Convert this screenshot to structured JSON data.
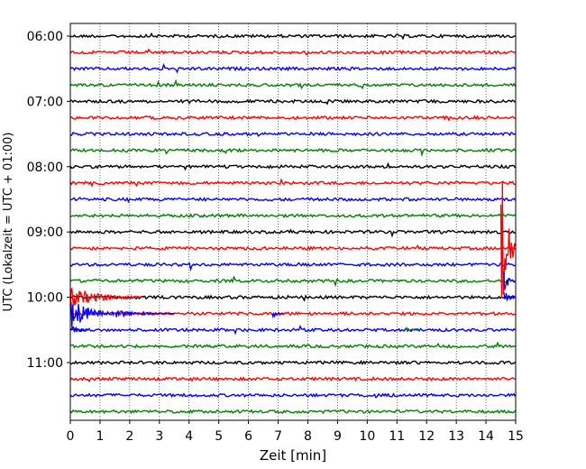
{
  "chart_data": {
    "type": "line",
    "title": "",
    "xlabel": "Zeit  [min]",
    "ylabel": "UTC (Lokalzeit = UTC + 01:00)",
    "xlim": [
      0,
      15
    ],
    "x_ticks": [
      "0",
      "1",
      "2",
      "3",
      "4",
      "5",
      "6",
      "7",
      "8",
      "9",
      "10",
      "11",
      "12",
      "13",
      "14",
      "15"
    ],
    "y_ticks": [
      "06:00",
      "07:00",
      "08:00",
      "09:00",
      "10:00",
      "11:00"
    ],
    "grid": "vertical dotted lines at each minute",
    "row_start": "06:00",
    "row_interval_min": 15,
    "row_count": 24,
    "row_colors": [
      "#000000",
      "#ff0000",
      "#0000ff",
      "#008000"
    ],
    "events": [
      {
        "row": 17,
        "x_start": 0.0,
        "x_end": 1.5,
        "peak_amplitude": 2.0,
        "color": "#0000ff"
      },
      {
        "row": 16,
        "x_start": 0.0,
        "x_end": 2.5,
        "peak_amplitude": 1.2,
        "color": "#ff0000"
      },
      {
        "row": 18,
        "x_start": 0.0,
        "x_end": 0.6,
        "peak_amplitude": 0.7,
        "color": "#0000ff"
      },
      {
        "row": 17,
        "x_start": 1.5,
        "x_end": 3.5,
        "peak_amplitude": 0.5,
        "color": "#0000ff"
      },
      {
        "row": 17,
        "x_start": 6.8,
        "x_end": 7.2,
        "peak_amplitude": 0.6,
        "color": "#0000ff"
      },
      {
        "row": 18,
        "x_start": 11.3,
        "x_end": 11.8,
        "peak_amplitude": 0.4,
        "color": "#008000"
      },
      {
        "row": 13,
        "x_start": 14.5,
        "x_end": 15.0,
        "peak_amplitude": 12.0,
        "color": "#ff0000"
      },
      {
        "row": 15,
        "x_start": 14.6,
        "x_end": 15.0,
        "peak_amplitude": 1.5,
        "color": "#0000ff"
      },
      {
        "row": 16,
        "x_start": 14.6,
        "x_end": 15.0,
        "peak_amplitude": 1.0,
        "color": "#0000ff"
      }
    ]
  }
}
